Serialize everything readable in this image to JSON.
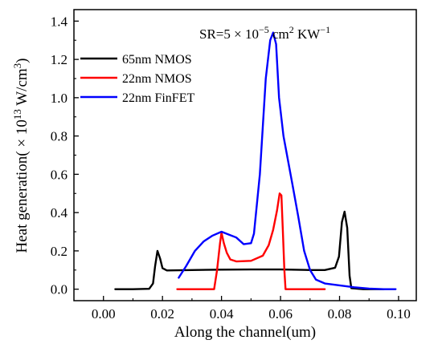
{
  "chart_data": {
    "type": "line",
    "title": "",
    "annotation": {
      "text_prefix": "SR=5 × 10",
      "text_exponent": "−5",
      "text_middle": " cm",
      "text_exponent2": "2",
      "text_suffix": " KW",
      "text_exponent3": "−1"
    },
    "xlabel": "Along the channel(um)",
    "ylabel": {
      "prefix": "Heat generation( × 10",
      "exponent": "13",
      "middle": " W/cm",
      "exponent2": "3",
      "suffix": ")"
    },
    "xlim": [
      -0.01,
      0.106
    ],
    "ylim": [
      -0.06,
      1.46
    ],
    "xticks": [
      0.0,
      0.02,
      0.04,
      0.06,
      0.08,
      0.1
    ],
    "xtick_labels": [
      "0.00",
      "0.02",
      "0.04",
      "0.06",
      "0.08",
      "0.10"
    ],
    "yticks": [
      0.0,
      0.2,
      0.4,
      0.6,
      0.8,
      1.0,
      1.2,
      1.4
    ],
    "ytick_labels": [
      "0.0",
      "0.2",
      "0.4",
      "0.6",
      "0.8",
      "1.0",
      "1.2",
      "1.4"
    ],
    "legend_position": "top-left",
    "series": [
      {
        "name": "65nm NMOS",
        "color": "#000000",
        "points": [
          [
            0.004,
            0.0
          ],
          [
            0.01,
            0.0
          ],
          [
            0.0155,
            0.002
          ],
          [
            0.0168,
            0.03
          ],
          [
            0.0175,
            0.12
          ],
          [
            0.0183,
            0.2
          ],
          [
            0.0192,
            0.16
          ],
          [
            0.02,
            0.11
          ],
          [
            0.0215,
            0.098
          ],
          [
            0.03,
            0.1
          ],
          [
            0.04,
            0.102
          ],
          [
            0.05,
            0.103
          ],
          [
            0.06,
            0.103
          ],
          [
            0.07,
            0.1
          ],
          [
            0.075,
            0.1
          ],
          [
            0.0785,
            0.112
          ],
          [
            0.0798,
            0.17
          ],
          [
            0.0808,
            0.35
          ],
          [
            0.0817,
            0.405
          ],
          [
            0.0826,
            0.32
          ],
          [
            0.0834,
            0.07
          ],
          [
            0.084,
            0.005
          ],
          [
            0.088,
            0.0
          ],
          [
            0.095,
            0.0
          ]
        ]
      },
      {
        "name": "22nm NMOS",
        "color": "#ff0000",
        "points": [
          [
            0.025,
            0.0
          ],
          [
            0.0375,
            0.0
          ],
          [
            0.0385,
            0.1
          ],
          [
            0.0395,
            0.24
          ],
          [
            0.04,
            0.295
          ],
          [
            0.0408,
            0.24
          ],
          [
            0.0418,
            0.19
          ],
          [
            0.043,
            0.155
          ],
          [
            0.045,
            0.145
          ],
          [
            0.05,
            0.148
          ],
          [
            0.054,
            0.175
          ],
          [
            0.056,
            0.23
          ],
          [
            0.0575,
            0.31
          ],
          [
            0.0588,
            0.41
          ],
          [
            0.0597,
            0.5
          ],
          [
            0.0603,
            0.49
          ],
          [
            0.0608,
            0.3
          ],
          [
            0.0613,
            0.1
          ],
          [
            0.0617,
            0.0
          ],
          [
            0.07,
            0.0
          ],
          [
            0.075,
            0.0
          ]
        ]
      },
      {
        "name": "22nm FinFET",
        "color": "#0000ff",
        "points": [
          [
            0.0255,
            0.06
          ],
          [
            0.028,
            0.12
          ],
          [
            0.031,
            0.2
          ],
          [
            0.034,
            0.25
          ],
          [
            0.037,
            0.28
          ],
          [
            0.04,
            0.3
          ],
          [
            0.0425,
            0.285
          ],
          [
            0.045,
            0.27
          ],
          [
            0.0475,
            0.235
          ],
          [
            0.05,
            0.24
          ],
          [
            0.051,
            0.29
          ],
          [
            0.053,
            0.6
          ],
          [
            0.055,
            1.1
          ],
          [
            0.0565,
            1.3
          ],
          [
            0.0575,
            1.34
          ],
          [
            0.0585,
            1.28
          ],
          [
            0.0595,
            1.0
          ],
          [
            0.061,
            0.8
          ],
          [
            0.064,
            0.55
          ],
          [
            0.066,
            0.38
          ],
          [
            0.068,
            0.2
          ],
          [
            0.07,
            0.1
          ],
          [
            0.072,
            0.05
          ],
          [
            0.075,
            0.03
          ],
          [
            0.08,
            0.02
          ],
          [
            0.085,
            0.01
          ],
          [
            0.09,
            0.003
          ],
          [
            0.095,
            0.0
          ],
          [
            0.099,
            0.0
          ]
        ]
      }
    ]
  }
}
